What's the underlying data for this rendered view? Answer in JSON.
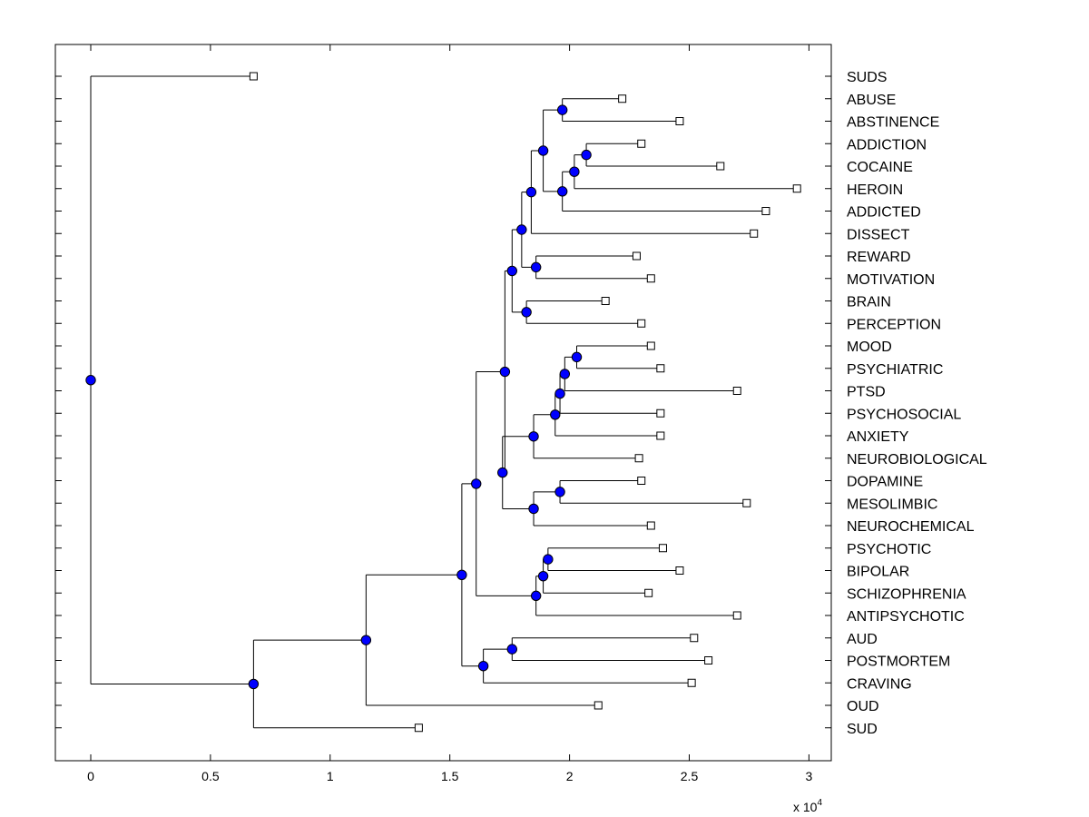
{
  "chart_data": {
    "type": "dendrogram",
    "orientation": "horizontal",
    "xlim": [
      -0.15,
      3.05
    ],
    "x_scale_label": "x 10",
    "x_scale_exponent": "4",
    "x_ticks": [
      {
        "value": 0,
        "label": "0"
      },
      {
        "value": 0.5,
        "label": "0.5"
      },
      {
        "value": 1,
        "label": "1"
      },
      {
        "value": 1.5,
        "label": "1.5"
      },
      {
        "value": 2,
        "label": "2"
      },
      {
        "value": 2.5,
        "label": "2.5"
      },
      {
        "value": 3,
        "label": "3"
      }
    ],
    "leaves": [
      {
        "label": "SUDS",
        "x": 0.68
      },
      {
        "label": "ABUSE",
        "x": 2.22
      },
      {
        "label": "ABSTINENCE",
        "x": 2.46
      },
      {
        "label": "ADDICTION",
        "x": 2.3
      },
      {
        "label": "COCAINE",
        "x": 2.63
      },
      {
        "label": "HEROIN",
        "x": 2.95
      },
      {
        "label": "ADDICTED",
        "x": 2.82
      },
      {
        "label": "DISSECT",
        "x": 2.77
      },
      {
        "label": "REWARD",
        "x": 2.28
      },
      {
        "label": "MOTIVATION",
        "x": 2.34
      },
      {
        "label": "BRAIN",
        "x": 2.15
      },
      {
        "label": "PERCEPTION",
        "x": 2.3
      },
      {
        "label": "MOOD",
        "x": 2.34
      },
      {
        "label": "PSYCHIATRIC",
        "x": 2.38
      },
      {
        "label": "PTSD",
        "x": 2.7
      },
      {
        "label": "PSYCHOSOCIAL",
        "x": 2.38
      },
      {
        "label": "ANXIETY",
        "x": 2.38
      },
      {
        "label": "NEUROBIOLOGICAL",
        "x": 2.29
      },
      {
        "label": "DOPAMINE",
        "x": 2.3
      },
      {
        "label": "MESOLIMBIC",
        "x": 2.74
      },
      {
        "label": "NEUROCHEMICAL",
        "x": 2.34
      },
      {
        "label": "PSYCHOTIC",
        "x": 2.39
      },
      {
        "label": "BIPOLAR",
        "x": 2.46
      },
      {
        "label": "SCHIZOPHRENIA",
        "x": 2.33
      },
      {
        "label": "ANTIPSYCHOTIC",
        "x": 2.7
      },
      {
        "label": "AUD",
        "x": 2.52
      },
      {
        "label": "POSTMORTEM",
        "x": 2.58
      },
      {
        "label": "CRAVING",
        "x": 2.51
      },
      {
        "label": "OUD",
        "x": 2.12
      },
      {
        "label": "SUD",
        "x": 1.37
      }
    ],
    "merges": [
      {
        "id": "m1",
        "children": [
          "ABUSE",
          "ABSTINENCE"
        ],
        "height": 1.97
      },
      {
        "id": "m2",
        "children": [
          "ADDICTION",
          "COCAINE"
        ],
        "height": 2.07
      },
      {
        "id": "m3",
        "children": [
          "m2",
          "HEROIN"
        ],
        "height": 2.02
      },
      {
        "id": "m4",
        "children": [
          "m3",
          "ADDICTED"
        ],
        "height": 1.97
      },
      {
        "id": "m5",
        "children": [
          "m1",
          "m4"
        ],
        "height": 1.89
      },
      {
        "id": "m6",
        "children": [
          "m5",
          "DISSECT"
        ],
        "height": 1.84
      },
      {
        "id": "m7",
        "children": [
          "REWARD",
          "MOTIVATION"
        ],
        "height": 1.86
      },
      {
        "id": "m8",
        "children": [
          "m6",
          "m7"
        ],
        "height": 1.8
      },
      {
        "id": "m9",
        "children": [
          "BRAIN",
          "PERCEPTION"
        ],
        "height": 1.82
      },
      {
        "id": "m10",
        "children": [
          "m8",
          "m9"
        ],
        "height": 1.76
      },
      {
        "id": "m11",
        "children": [
          "MOOD",
          "PSYCHIATRIC"
        ],
        "height": 2.03
      },
      {
        "id": "m12",
        "children": [
          "m11",
          "PTSD"
        ],
        "height": 1.98
      },
      {
        "id": "m13",
        "children": [
          "m12",
          "PSYCHOSOCIAL"
        ],
        "height": 1.96
      },
      {
        "id": "m14",
        "children": [
          "m13",
          "ANXIETY"
        ],
        "height": 1.94
      },
      {
        "id": "m15",
        "children": [
          "m14",
          "NEUROBIOLOGICAL"
        ],
        "height": 1.85
      },
      {
        "id": "m16",
        "children": [
          "DOPAMINE",
          "MESOLIMBIC"
        ],
        "height": 1.96
      },
      {
        "id": "m17",
        "children": [
          "m16",
          "NEUROCHEMICAL"
        ],
        "height": 1.85
      },
      {
        "id": "m18",
        "children": [
          "m15",
          "m17"
        ],
        "height": 1.72
      },
      {
        "id": "m19",
        "children": [
          "m10",
          "m18"
        ],
        "height": 1.73
      },
      {
        "id": "m20",
        "children": [
          "PSYCHOTIC",
          "BIPOLAR"
        ],
        "height": 1.91
      },
      {
        "id": "m21",
        "children": [
          "m20",
          "SCHIZOPHRENIA"
        ],
        "height": 1.89
      },
      {
        "id": "m22",
        "children": [
          "m21",
          "ANTIPSYCHOTIC"
        ],
        "height": 1.86
      },
      {
        "id": "m23",
        "children": [
          "m19",
          "m22"
        ],
        "height": 1.61
      },
      {
        "id": "m24",
        "children": [
          "AUD",
          "POSTMORTEM"
        ],
        "height": 1.76
      },
      {
        "id": "m25",
        "children": [
          "m24",
          "CRAVING"
        ],
        "height": 1.64
      },
      {
        "id": "m26",
        "children": [
          "m23",
          "m25"
        ],
        "height": 1.55
      },
      {
        "id": "m27",
        "children": [
          "m26",
          "OUD"
        ],
        "height": 1.15
      },
      {
        "id": "m28",
        "children": [
          "m27",
          "SUD"
        ],
        "height": 0.68
      },
      {
        "id": "m29",
        "children": [
          "SUDS",
          "m28"
        ],
        "height": 0.0
      }
    ],
    "colors": {
      "internal_node_fill": "#0000ff",
      "leaf_node_fill": "#ffffff",
      "line": "#000000",
      "background": "#ffffff"
    }
  }
}
